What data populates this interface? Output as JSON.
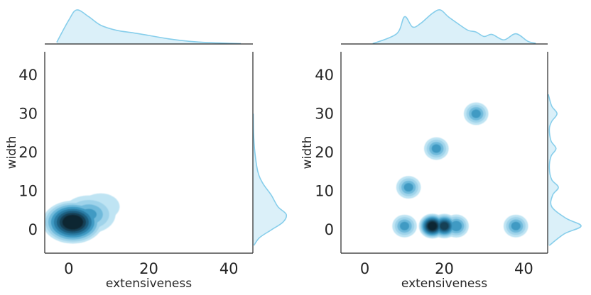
{
  "chart_data": [
    {
      "type": "kde-jointplot",
      "title": "",
      "xlabel": "extensiveness",
      "ylabel": "width",
      "xlim": [
        -6,
        46
      ],
      "ylim": [
        -6,
        46
      ],
      "xticks": [
        0,
        20,
        40
      ],
      "yticks": [
        0,
        10,
        20,
        30,
        40
      ],
      "grid": false,
      "color": "#87ceeb",
      "joint_kde_modes": [
        {
          "x": 1,
          "y": 2,
          "density": 1.0
        },
        {
          "x": 5,
          "y": 4,
          "density": 0.45
        },
        {
          "x": 8,
          "y": 6,
          "density": 0.2
        }
      ],
      "marginal_x": {
        "x": [
          -3,
          0,
          2,
          5,
          8,
          12,
          16,
          20,
          25,
          30,
          35,
          40,
          43
        ],
        "density": [
          0.05,
          0.7,
          1.0,
          0.8,
          0.55,
          0.4,
          0.33,
          0.25,
          0.15,
          0.08,
          0.04,
          0.02,
          0.01
        ]
      },
      "marginal_y": {
        "y": [
          -4,
          -2,
          0,
          2,
          4,
          6,
          9,
          12,
          15,
          20,
          25,
          30
        ],
        "density": [
          0.03,
          0.2,
          0.55,
          0.9,
          1.0,
          0.75,
          0.55,
          0.3,
          0.15,
          0.06,
          0.02,
          0.01
        ]
      }
    },
    {
      "type": "kde-jointplot",
      "title": "",
      "xlabel": "extensiveness",
      "ylabel": "width",
      "xlim": [
        -6,
        46
      ],
      "ylim": [
        -6,
        46
      ],
      "xticks": [
        0,
        20,
        40
      ],
      "yticks": [
        0,
        10,
        20,
        30,
        40
      ],
      "grid": false,
      "color": "#87ceeb",
      "joint_kde_modes": [
        {
          "x": 10,
          "y": 1,
          "density": 0.5
        },
        {
          "x": 17,
          "y": 1,
          "density": 1.0
        },
        {
          "x": 20,
          "y": 1,
          "density": 0.85
        },
        {
          "x": 23,
          "y": 1,
          "density": 0.55
        },
        {
          "x": 38,
          "y": 1,
          "density": 0.5
        },
        {
          "x": 11,
          "y": 11,
          "density": 0.5
        },
        {
          "x": 18,
          "y": 21,
          "density": 0.5
        },
        {
          "x": 28,
          "y": 30,
          "density": 0.5
        }
      ],
      "marginal_x": {
        "x": [
          2,
          8,
          10,
          12,
          14,
          17,
          19,
          21,
          24,
          26,
          28,
          30,
          32,
          35,
          38,
          41,
          43
        ],
        "density": [
          0.01,
          0.3,
          0.8,
          0.5,
          0.6,
          0.9,
          1.0,
          0.8,
          0.55,
          0.4,
          0.35,
          0.22,
          0.28,
          0.12,
          0.3,
          0.08,
          0.02
        ]
      },
      "marginal_y": {
        "y": [
          -4,
          -1,
          1,
          3,
          6,
          9,
          11,
          13,
          16,
          19,
          21,
          23,
          26,
          28,
          30,
          32,
          35
        ],
        "density": [
          0.05,
          0.5,
          1.0,
          0.55,
          0.12,
          0.15,
          0.32,
          0.12,
          0.05,
          0.1,
          0.25,
          0.1,
          0.05,
          0.12,
          0.28,
          0.12,
          0.02
        ]
      }
    }
  ]
}
